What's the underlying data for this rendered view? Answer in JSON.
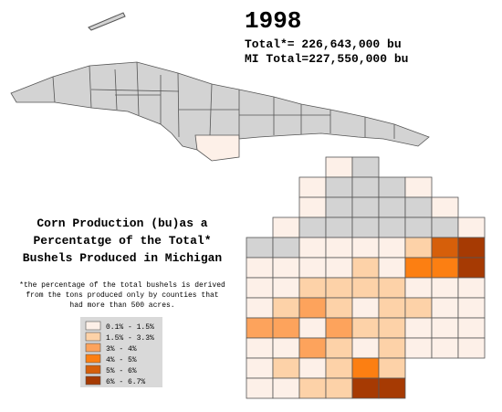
{
  "header": {
    "year": "1998",
    "total": "Total*= 226,643,000 bu",
    "mi_total": "MI Total=227,550,000 bu"
  },
  "heading": [
    "Corn Production (bu)as a",
    "Percentatge of the Total*",
    "Bushels Produced in Michigan"
  ],
  "footnote": [
    "*the percentage of the total bushels is derived",
    "from the tons produced only by counties that",
    "had more than 500 acres."
  ],
  "legend": [
    {
      "label": "0.1% - 1.5%",
      "color": "#fdf0e8"
    },
    {
      "label": "1.5% - 3.3%",
      "color": "#fdd2a8"
    },
    {
      "label": "3% - 4%",
      "color": "#fda35c"
    },
    {
      "label": "4% - 5%",
      "color": "#fc7f12"
    },
    {
      "label": "5% - 6%",
      "color": "#d65f0a"
    },
    {
      "label": "6% - 6.7%",
      "color": "#a63a03"
    }
  ]
}
